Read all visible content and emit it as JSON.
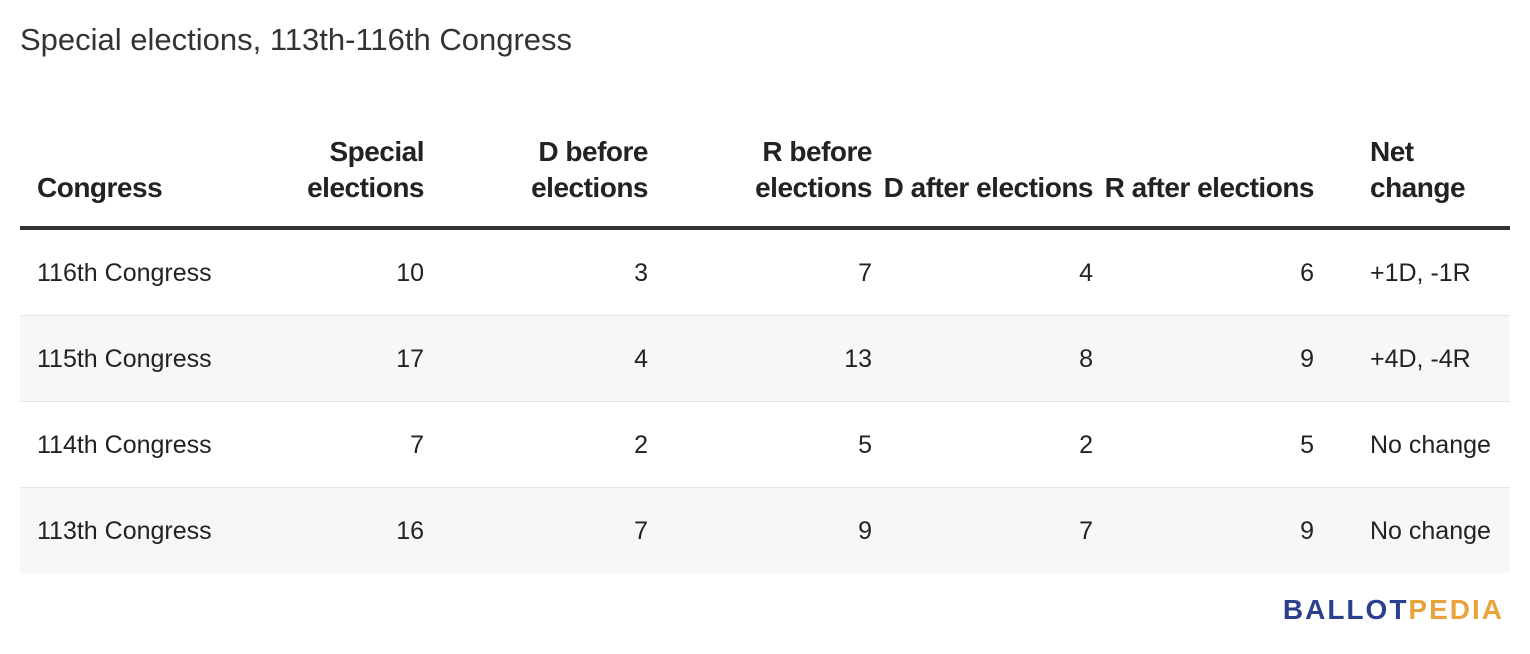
{
  "title": "Special elections, 113th-116th Congress",
  "table": {
    "headers": [
      "Congress",
      "Special elections",
      "D before elections",
      "R before elections",
      "D after elections",
      "R after elections",
      "Net change"
    ],
    "rows": [
      [
        "116th Congress",
        "10",
        "3",
        "7",
        "4",
        "6",
        "+1D, -1R"
      ],
      [
        "115th Congress",
        "17",
        "4",
        "13",
        "8",
        "9",
        "+4D, -4R"
      ],
      [
        "114th Congress",
        "7",
        "2",
        "5",
        "2",
        "5",
        "No change"
      ],
      [
        "113th Congress",
        "16",
        "7",
        "9",
        "7",
        "9",
        "No change"
      ]
    ]
  },
  "brand": {
    "part1": "BALLOT",
    "part2": "PEDIA",
    "color1": "#2b3f8f",
    "color2": "#e8a33c"
  }
}
